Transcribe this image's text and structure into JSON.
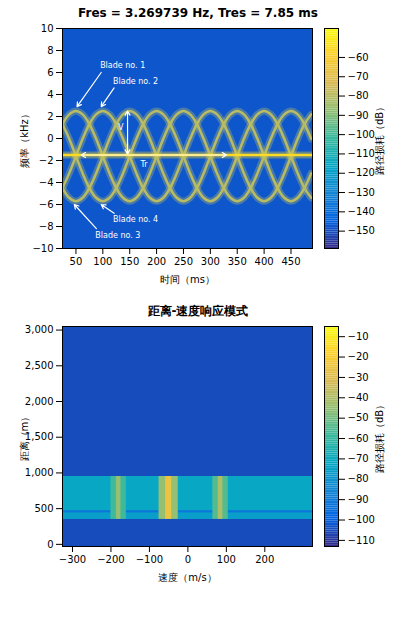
{
  "chart_data": [
    {
      "type": "spectrogram",
      "title": "Fres = 3.269739 Hz, Tres = 7.85 ms",
      "x_label": "时间（ms）",
      "y_label": "频率（kHz）",
      "xlim": [
        25,
        490
      ],
      "xticks": [
        50,
        100,
        150,
        200,
        250,
        300,
        350,
        400,
        450
      ],
      "ylim": [
        -10,
        10
      ],
      "yticks": [
        -10,
        -8,
        -6,
        -4,
        -2,
        0,
        2,
        4,
        6,
        8,
        10
      ],
      "background": -148,
      "x": [
        25,
        37.5,
        50,
        62.5,
        75,
        87.5,
        100,
        112.5,
        125,
        137.5,
        150,
        162.5,
        175,
        187.5,
        200,
        212.5,
        225,
        237.5,
        250,
        262.5,
        275,
        287.5,
        300,
        312.5,
        325,
        337.5,
        350,
        362.5,
        375,
        387.5,
        400,
        412.5,
        425,
        437.5,
        450,
        462.5,
        475,
        487.5
      ],
      "series": [
        {
          "level": -80,
          "values": [
            1.3,
            -0.03,
            -1.6,
            -3.17,
            -4.5,
            -5.39,
            -5.7,
            -5.39,
            -4.5,
            -3.17,
            -1.6,
            -0.03,
            1.3,
            2.19,
            2.5,
            2.19,
            1.3,
            -0.03,
            -1.6,
            -3.17,
            -4.5,
            -5.39,
            -5.7,
            -5.39,
            -4.5,
            -3.17,
            -1.6,
            -0.03,
            1.3,
            2.19,
            2.5,
            2.19,
            1.3,
            -0.03,
            -1.6,
            -3.17,
            -4.5,
            -5.39
          ]
        },
        {
          "level": -80,
          "values": [
            1.3,
            2.19,
            2.5,
            2.19,
            1.3,
            -0.03,
            -1.6,
            -3.17,
            -4.5,
            -5.39,
            -5.7,
            -5.39,
            -4.5,
            -3.17,
            -1.6,
            -0.03,
            1.3,
            2.19,
            2.5,
            2.19,
            1.3,
            -0.03,
            -1.6,
            -3.17,
            -4.5,
            -5.39,
            -5.7,
            -5.39,
            -4.5,
            -3.17,
            -1.6,
            -0.03,
            1.3,
            2.19,
            2.5,
            2.19,
            1.3,
            -0.03
          ]
        },
        {
          "level": -80,
          "values": [
            -4.5,
            -3.17,
            -1.6,
            -0.03,
            1.3,
            2.19,
            2.5,
            2.19,
            1.3,
            -0.03,
            -1.6,
            -3.17,
            -4.5,
            -5.39,
            -5.7,
            -5.39,
            -4.5,
            -3.17,
            -1.6,
            -0.03,
            1.3,
            2.19,
            2.5,
            2.19,
            1.3,
            -0.03,
            -1.6,
            -3.17,
            -4.5,
            -5.39,
            -5.7,
            -5.39,
            -4.5,
            -3.17,
            -1.6,
            -0.03,
            1.3,
            2.19
          ]
        },
        {
          "level": -80,
          "values": [
            -4.5,
            -5.39,
            -5.7,
            -5.39,
            -4.5,
            -3.17,
            -1.6,
            -0.03,
            1.3,
            2.19,
            2.5,
            2.19,
            1.3,
            -0.03,
            -1.6,
            -3.17,
            -4.5,
            -5.39,
            -5.7,
            -5.39,
            -4.5,
            -3.17,
            -1.6,
            -0.03,
            1.3,
            2.19,
            2.5,
            2.19,
            1.3,
            -0.03,
            -1.6,
            -3.17,
            -4.5,
            -5.39,
            -5.7,
            -5.39,
            -4.5,
            -3.17
          ]
        },
        {
          "level": -55,
          "x": [
            25,
            490
          ],
          "values": [
            -1.5,
            -1.5
          ]
        }
      ],
      "annotations": [
        {
          "text": "Blade no. 1",
          "x": 95,
          "y": 6.6,
          "arrows": [
            [
              97,
              6.0,
              52,
              2.9
            ]
          ]
        },
        {
          "text": "Blade no. 2",
          "x": 119,
          "y": 5.2,
          "arrows": [
            [
              121,
              4.6,
              97,
              2.9
            ]
          ]
        },
        {
          "text": "Blade no. 3",
          "x": 86,
          "y": -8.8,
          "arrows": [
            [
              88,
              -8.2,
              47,
              -6.0
            ]
          ]
        },
        {
          "text": "Blade no. 4",
          "x": 119,
          "y": -7.4,
          "arrows": [
            [
              121,
              -6.8,
              97,
              -6.0
            ]
          ]
        },
        {
          "text": "V",
          "x": 128,
          "y": 1.0,
          "arrows": [
            [
              146,
              0.4,
              146,
              2.5
            ],
            [
              146,
              0.4,
              146,
              -1.4
            ]
          ]
        },
        {
          "text": "Tr",
          "x": 170,
          "y": -2.4,
          "arrows": [
            [
              190,
              -1.5,
              60,
              -1.5
            ],
            [
              190,
              -1.5,
              330,
              -1.5
            ]
          ]
        }
      ],
      "colorbar": {
        "label": "路径损耗（dB）",
        "lim": [
          -159,
          -45
        ],
        "ticks": [
          -150,
          -140,
          -130,
          -120,
          -110,
          -100,
          -90,
          -80,
          -70,
          -60
        ]
      }
    },
    {
      "type": "heatmap",
      "title": "距离-速度响应模式",
      "x_label": "速度（m/s）",
      "y_label": "距离（m）",
      "xlim": [
        -326,
        324
      ],
      "xticks": [
        -300,
        -200,
        -100,
        0,
        100,
        200
      ],
      "ylim": [
        -30,
        3050
      ],
      "yticks": [
        0,
        500,
        1000,
        1500,
        2000,
        2500,
        3000
      ],
      "background": -105,
      "cells": [
        {
          "x": [
            -326,
            324
          ],
          "y": [
            350,
            950
          ],
          "value": -72
        },
        {
          "x": [
            -326,
            324
          ],
          "y": [
            350,
            440
          ],
          "value": -76
        },
        {
          "x": [
            -326,
            324
          ],
          "y": [
            440,
            470
          ],
          "value": -92
        },
        {
          "x": [
            -200,
            -160
          ],
          "y": [
            350,
            950
          ],
          "value": -58
        },
        {
          "x": [
            -186,
            -174
          ],
          "y": [
            350,
            950
          ],
          "value": -45
        },
        {
          "x": [
            -75,
            -25
          ],
          "y": [
            350,
            950
          ],
          "value": -45
        },
        {
          "x": [
            -58,
            -42
          ],
          "y": [
            350,
            950
          ],
          "value": -25
        },
        {
          "x": [
            65,
            105
          ],
          "y": [
            350,
            950
          ],
          "value": -55
        },
        {
          "x": [
            79,
            91
          ],
          "y": [
            350,
            950
          ],
          "value": -40
        }
      ],
      "colorbar": {
        "label": "路径损耗（dB）",
        "lim": [
          -113,
          -5
        ],
        "ticks": [
          -110,
          -100,
          -90,
          -80,
          -70,
          -60,
          -50,
          -40,
          -30,
          -20,
          -10
        ]
      }
    }
  ]
}
